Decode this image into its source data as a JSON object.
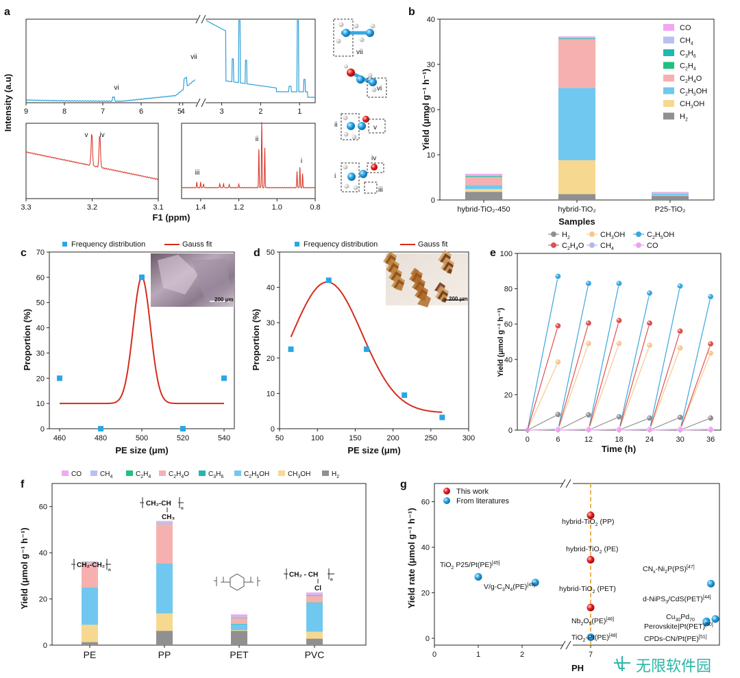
{
  "watermark": "无限软件园",
  "panels": {
    "a": {
      "letter": "a",
      "ylabel": "Intensity (a.u)",
      "xlabel": "F1 (ppm)",
      "top_ticks": [
        "9",
        "8",
        "7",
        "6",
        "5",
        "4",
        "3",
        "2",
        "1"
      ],
      "inset1_ticks": [
        "3.3",
        "3.2",
        "3.1"
      ],
      "inset2_ticks": [
        "1.4",
        "1.2",
        "1.0",
        "0.8"
      ],
      "peak_labels": {
        "i": "i",
        "ii": "ii",
        "iii": "iii",
        "iv": "iv",
        "v": "v",
        "vi": "vi",
        "vii": "vii"
      },
      "molecule_labels": [
        "vii",
        "vi",
        "ii",
        "v",
        "i",
        "iv",
        "iii"
      ],
      "color_top": "#2a9fd6",
      "color_insets": "#d93a2b"
    },
    "b": {
      "letter": "b",
      "ylabel": "Yield (μmol g⁻¹ h⁻¹)",
      "xlabel": "Samples",
      "yticks": [
        0,
        10,
        20,
        30,
        40
      ],
      "legend": [
        {
          "label": "CO",
          "sub": "",
          "color": "#f0a8f0"
        },
        {
          "label": "CH",
          "sub": "4",
          "color": "#b8c0f0"
        },
        {
          "label": "C",
          "sub": "3",
          "tail": "H",
          "sub2": "6",
          "color": "#20b8b0"
        },
        {
          "label": "C",
          "sub": "2",
          "tail": "H",
          "sub2": "4",
          "color": "#20c080"
        },
        {
          "label": "C",
          "sub": "2",
          "tail": "H",
          "sub2": "4",
          "tail2": "O",
          "color": "#f7b0b0"
        },
        {
          "label": "C",
          "sub": "2",
          "tail": "H",
          "sub2": "5",
          "tail2": "OH",
          "color": "#70c8f0"
        },
        {
          "label": "CH",
          "sub": "3",
          "tail": "OH",
          "color": "#f7d890"
        },
        {
          "label": "H",
          "sub": "2",
          "color": "#909090"
        }
      ]
    },
    "c": {
      "letter": "c",
      "ylabel": "Proportion (%)",
      "xlabel": "PE size (μm)",
      "legend_points": "Frequency distribution",
      "legend_fit": "Gauss fit",
      "scale": "200 μm",
      "xticks": [
        460,
        480,
        500,
        520,
        540
      ],
      "yticks": [
        0,
        10,
        20,
        30,
        40,
        50,
        60,
        70
      ]
    },
    "d": {
      "letter": "d",
      "ylabel": "Proportion (%)",
      "xlabel": "PE size (μm)",
      "legend_points": "Frequency distribution",
      "legend_fit": "Gauss fit",
      "scale": "200 μm",
      "xticks": [
        50,
        100,
        150,
        200,
        250,
        300
      ],
      "yticks": [
        0,
        10,
        20,
        30,
        40,
        50
      ]
    },
    "e": {
      "letter": "e",
      "ylabel": "Yield (μmol g⁻¹ h⁻¹)",
      "xlabel": "Time (h)",
      "xticks": [
        0,
        6,
        12,
        18,
        24,
        30,
        36
      ],
      "yticks": [
        0,
        20,
        40,
        60,
        80,
        100
      ],
      "legend": [
        {
          "label": "H",
          "sub": "2",
          "color": "#909090"
        },
        {
          "label": "CH",
          "sub": "3",
          "tail": "OH",
          "color": "#f7c890"
        },
        {
          "label": "C",
          "sub": "2",
          "tail": "H",
          "sub2": "5",
          "tail2": "OH",
          "color": "#3aa6e0"
        },
        {
          "label": "C",
          "sub": "2",
          "tail": "H",
          "sub2": "4",
          "tail2": "O",
          "color": "#e05050"
        },
        {
          "label": "CH",
          "sub": "4",
          "color": "#b0b8f0"
        },
        {
          "label": "CO",
          "sub": "",
          "color": "#f0a0f0"
        }
      ]
    },
    "f": {
      "letter": "f",
      "ylabel": "Yield (μmol g⁻¹ h⁻¹)",
      "yticks": [
        0,
        20,
        40,
        60
      ],
      "legend": [
        {
          "label": "CO",
          "sub": "",
          "color": "#f0a8f0"
        },
        {
          "label": "CH",
          "sub": "4",
          "color": "#b8c0f0"
        },
        {
          "label": "C",
          "sub": "2",
          "tail": "H",
          "sub2": "4",
          "color": "#20c080"
        },
        {
          "label": "C",
          "sub": "2",
          "tail": "H",
          "sub2": "4",
          "tail2": "O",
          "color": "#f7b0b0"
        },
        {
          "label": "C",
          "sub": "3",
          "tail": "H",
          "sub2": "6",
          "color": "#20b8b0"
        },
        {
          "label": "C",
          "sub": "2",
          "tail": "H",
          "sub2": "5",
          "tail2": "OH",
          "color": "#70c8f0"
        },
        {
          "label": "CH",
          "sub": "3",
          "tail": "OH",
          "color": "#f7d890"
        },
        {
          "label": "H",
          "sub": "2",
          "color": "#909090"
        }
      ],
      "struct_pe": "CH₂-CH₂",
      "struct_pp_main": "CH₂-CH",
      "struct_pp_side": "CH₃",
      "struct_pvc_main": "CH₂ - CH",
      "struct_pvc_side": "Cl",
      "sub_n": "n"
    },
    "g": {
      "letter": "g",
      "ylabel": "Yield rate (μmol g⁻¹ h⁻¹)",
      "xlabel": "PH",
      "xticks": [
        "0",
        "1",
        "2",
        "7"
      ],
      "yticks": [
        0,
        20,
        40,
        60
      ],
      "legend_this": "This work",
      "legend_lit": "From literatures",
      "labels": [
        {
          "text": "hybrid-TiO",
          "sub": "2",
          "tail": " (PP)"
        },
        {
          "text": "hybrid-TiO",
          "sub": "2",
          "tail": " (PE)"
        },
        {
          "text": "hybrid-TiO",
          "sub": "2",
          "tail": " (PET)"
        },
        {
          "text": "TiO",
          "sub": "2",
          "tail": " P25/Pt(PE)",
          "sup": "[45]"
        },
        {
          "text": "V/g-C",
          "sub": "3",
          "tail": "N",
          "sub2": "4",
          "tail2": "(PE)",
          "sup": "[49]"
        },
        {
          "text": "Nb",
          "sub": "2",
          "tail": "O",
          "sub2": "5",
          "tail2": "(PE)",
          "sup": "[46]"
        },
        {
          "text": "TiO",
          "sub": "2",
          "tail": "-Pt(PE)",
          "sup": "[48]"
        },
        {
          "text": "CN",
          "sub": "x",
          "tail": "-Ni",
          "sub2": "2",
          "tail2": "P(PS)",
          "sup": "[47]"
        },
        {
          "text": "d-NiPS",
          "sub": "3",
          "tail": "/CdS(PET)",
          "sup": "[44]"
        },
        {
          "text": "Cu",
          "sub": "30",
          "tail": "Pd",
          "sub2": "70",
          "tail2": "",
          "sup": ""
        },
        {
          "text": "Perovskite|Pt(PET)",
          "sup": "[50]"
        },
        {
          "text": "CPDs-CN/Pt(PE)",
          "sup": "[51]"
        }
      ]
    }
  },
  "chart_data": [
    {
      "panel": "b",
      "type": "bar",
      "stacked": true,
      "categories": [
        "hybrid-TiO₂-450",
        "hybrid-TiO₂",
        "P25-TiO₂"
      ],
      "ylim": [
        0,
        40
      ],
      "xlabel": "Samples",
      "ylabel": "Yield (μmol g⁻¹ h⁻¹)",
      "series": [
        {
          "name": "H₂",
          "values": [
            1.8,
            1.3,
            0.9
          ]
        },
        {
          "name": "CH₃OH",
          "values": [
            0.6,
            7.5,
            0.1
          ]
        },
        {
          "name": "C₂H₅OH",
          "values": [
            0.9,
            16.0,
            0.4
          ]
        },
        {
          "name": "C₂H₄O",
          "values": [
            1.8,
            10.8,
            0.2
          ]
        },
        {
          "name": "C₂H₄",
          "values": [
            0.1,
            0.1,
            0.0
          ]
        },
        {
          "name": "C₃H₆",
          "values": [
            0.1,
            0.1,
            0.0
          ]
        },
        {
          "name": "CH₄",
          "values": [
            0.2,
            0.2,
            0.1
          ]
        },
        {
          "name": "CO",
          "values": [
            0.3,
            0.2,
            0.1
          ]
        }
      ]
    },
    {
      "panel": "c",
      "type": "scatter",
      "x": [
        460,
        480,
        500,
        520,
        540
      ],
      "y": [
        20,
        0,
        60,
        0,
        20
      ],
      "xlim": [
        455,
        545
      ],
      "ylim": [
        0,
        70
      ],
      "fit": {
        "type": "gauss",
        "baseline": 10,
        "amplitude": 50,
        "center": 500,
        "sigma": 4.2
      }
    },
    {
      "panel": "d",
      "type": "scatter",
      "x": [
        65,
        115,
        165,
        215,
        265
      ],
      "y": [
        22.5,
        42,
        22.5,
        9.5,
        3.2
      ],
      "xlim": [
        50,
        300
      ],
      "ylim": [
        0,
        50
      ],
      "fit": {
        "type": "gauss",
        "baseline": 4.5,
        "amplitude": 37,
        "center": 113,
        "sigma": 46,
        "xrange": [
          65,
          265
        ]
      }
    },
    {
      "panel": "e",
      "type": "line",
      "x": [
        0,
        6,
        12,
        18,
        24,
        30,
        36
      ],
      "xlim": [
        -2,
        38
      ],
      "ylim": [
        0,
        100
      ],
      "series": [
        {
          "name": "H₂",
          "values": [
            0,
            8.8,
            8.6,
            7.5,
            6.8,
            7.2,
            6.8
          ]
        },
        {
          "name": "CH₃OH",
          "values": [
            0,
            38.5,
            49,
            49,
            48,
            46.5,
            43.5
          ]
        },
        {
          "name": "C₂H₅OH",
          "values": [
            0,
            87,
            83,
            83,
            77.5,
            81.5,
            75.5
          ]
        },
        {
          "name": "C₂H₄O",
          "values": [
            0,
            59,
            60.5,
            62,
            60.5,
            56,
            48.8
          ]
        },
        {
          "name": "CH₄",
          "values": [
            0,
            0.6,
            0.6,
            0.6,
            0.6,
            0.6,
            0.6
          ]
        },
        {
          "name": "CO",
          "values": [
            0,
            0.3,
            0.3,
            0.3,
            0.3,
            0.3,
            0.3
          ]
        }
      ]
    },
    {
      "panel": "f",
      "type": "bar",
      "stacked": true,
      "categories": [
        "PE",
        "PP",
        "PET",
        "PVC"
      ],
      "ylim": [
        0,
        70
      ],
      "ylabel": "Yield (μmol g⁻¹ h⁻¹)",
      "series": [
        {
          "name": "H₂",
          "values": [
            1.3,
            6.2,
            6.2,
            2.8
          ]
        },
        {
          "name": "CH₃OH",
          "values": [
            7.5,
            7.5,
            0.3,
            3.0
          ]
        },
        {
          "name": "C₂H₅OH",
          "values": [
            16.0,
            21.5,
            2.5,
            12.5
          ]
        },
        {
          "name": "C₃H₆",
          "values": [
            0.1,
            0.1,
            0.2,
            0.2
          ]
        },
        {
          "name": "C₂H₄O",
          "values": [
            10.8,
            17.0,
            2.4,
            2.8
          ]
        },
        {
          "name": "C₂H₄",
          "values": [
            0.1,
            0.1,
            0.2,
            0.2
          ]
        },
        {
          "name": "CH₄",
          "values": [
            0.2,
            0.8,
            0.5,
            0.5
          ]
        },
        {
          "name": "CO",
          "values": [
            0.3,
            0.6,
            1.0,
            0.8
          ]
        }
      ]
    },
    {
      "panel": "g",
      "type": "scatter",
      "xlabel": "PH",
      "ylim": [
        -3,
        68
      ],
      "this_work": [
        {
          "x": 7,
          "y": 54
        },
        {
          "x": 7,
          "y": 34.5
        },
        {
          "x": 7,
          "y": 13.5
        }
      ],
      "literature": [
        {
          "x": 1,
          "y": 27
        },
        {
          "x": 2.3,
          "y": 24.5
        },
        {
          "x": 7,
          "y": 0.5
        },
        {
          "x": 9.7,
          "y": 24
        },
        {
          "x": 9.6,
          "y": 7.5
        },
        {
          "x": 9.8,
          "y": 8.5
        },
        {
          "x": 9.6,
          "y": 7
        }
      ]
    }
  ]
}
